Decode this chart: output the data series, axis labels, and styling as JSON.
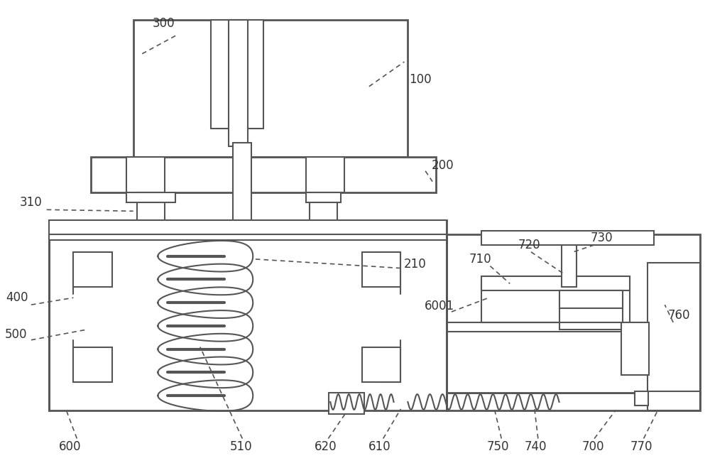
{
  "bg_color": "#ffffff",
  "lc": "#555555",
  "lw": 1.5,
  "tlw": 2.0,
  "fs": 12,
  "figsize": [
    10.0,
    6.59
  ],
  "dpi": 100
}
